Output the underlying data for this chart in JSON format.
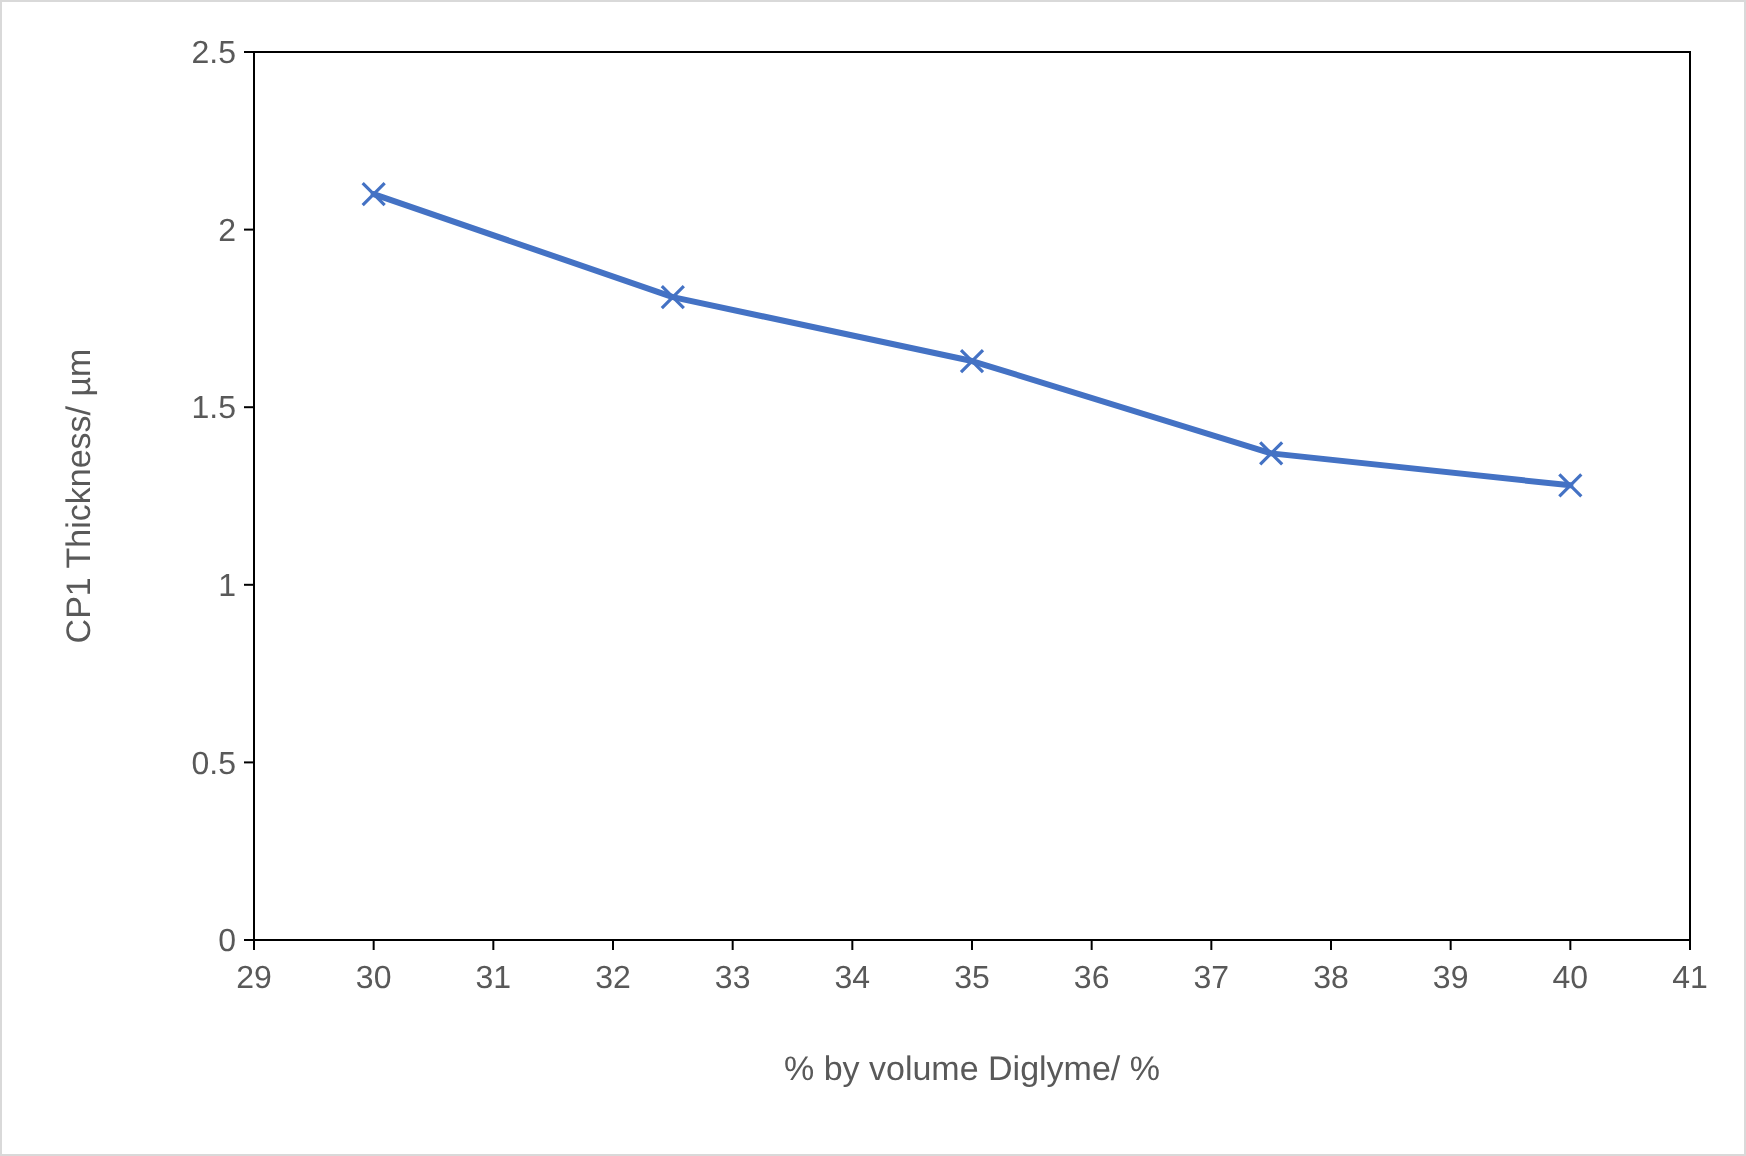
{
  "chart_data": {
    "type": "line",
    "xlabel": "% by volume Diglyme/ %",
    "ylabel": "CP1 Thickness/ µm",
    "x": [
      30,
      32.5,
      35,
      37.5,
      40
    ],
    "series": [
      {
        "color": "#4472c4",
        "values": [
          2.1,
          1.81,
          1.63,
          1.37,
          1.28
        ]
      }
    ],
    "xlim": [
      29,
      41
    ],
    "xticks": [
      29,
      30,
      31,
      32,
      33,
      34,
      35,
      36,
      37,
      38,
      39,
      40,
      41
    ],
    "ylim": [
      0,
      2.5
    ],
    "yticks": [
      {
        "value": 0,
        "label": "0"
      },
      {
        "value": 0.5,
        "label": "0.5"
      },
      {
        "value": 1,
        "label": "1"
      },
      {
        "value": 1.5,
        "label": "1.5"
      },
      {
        "value": 2,
        "label": "2"
      },
      {
        "value": 2.5,
        "label": "2.5"
      }
    ],
    "marker": "cross",
    "line_style": "solid",
    "grid": false
  }
}
